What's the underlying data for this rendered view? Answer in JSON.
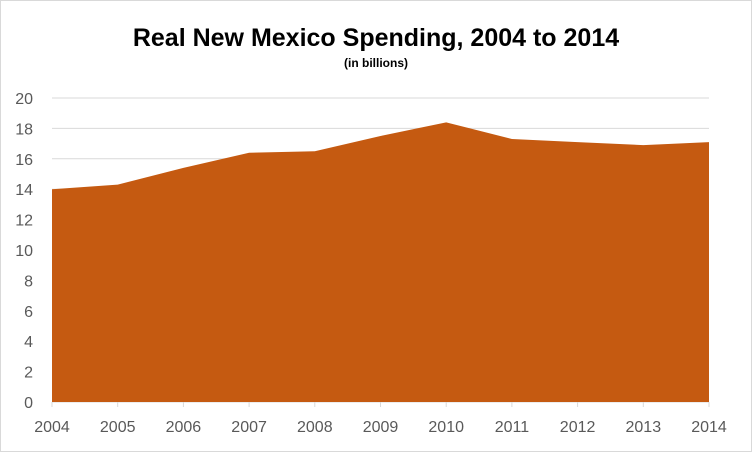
{
  "chart_data": {
    "type": "area",
    "title": "Real New Mexico Spending, 2004 to 2014",
    "subtitle": "(in billions)",
    "xlabel": "",
    "ylabel": "",
    "x": [
      "2004",
      "2005",
      "2006",
      "2007",
      "2008",
      "2009",
      "2010",
      "2011",
      "2012",
      "2013",
      "2014"
    ],
    "series": [
      {
        "values": [
          14.0,
          14.3,
          15.4,
          16.4,
          16.5,
          17.5,
          18.4,
          17.3,
          17.1,
          16.9,
          17.1
        ]
      }
    ],
    "ylim": [
      0,
      20
    ],
    "yticks": [
      "0",
      "2",
      "4",
      "6",
      "8",
      "10",
      "12",
      "14",
      "16",
      "18",
      "20"
    ],
    "grid": true,
    "legend": "none",
    "colors": {
      "area": "#c55a11",
      "grid": "#d9d9d9",
      "tick_text": "#595959"
    }
  }
}
